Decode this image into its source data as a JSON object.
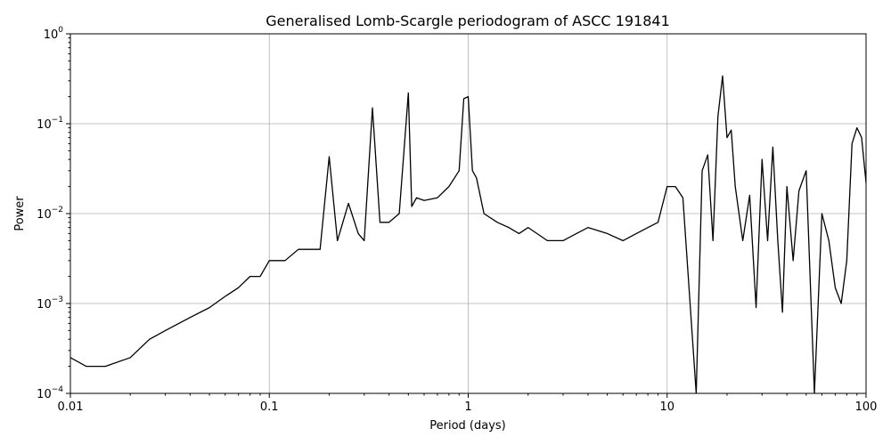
{
  "chart_data": {
    "type": "line",
    "title": "Generalised Lomb-Scargle periodogram of ASCC 191841",
    "xlabel": "Period (days)",
    "ylabel": "Power",
    "xscale": "log",
    "yscale": "log",
    "xlim": [
      0.01,
      100
    ],
    "ylim": [
      0.0001,
      1
    ],
    "grid": true,
    "line_color": "#000000",
    "x_ticks": [
      {
        "value": 0.01,
        "label": "0.01"
      },
      {
        "value": 0.1,
        "label": "0.1"
      },
      {
        "value": 1,
        "label": "1"
      },
      {
        "value": 10,
        "label": "10"
      },
      {
        "value": 100,
        "label": "100"
      }
    ],
    "y_ticks": [
      {
        "value": 0.0001,
        "base": "10",
        "exp": "−4"
      },
      {
        "value": 0.001,
        "base": "10",
        "exp": "−3"
      },
      {
        "value": 0.01,
        "base": "10",
        "exp": "−2"
      },
      {
        "value": 0.1,
        "base": "10",
        "exp": "−1"
      },
      {
        "value": 1,
        "base": "10",
        "exp": "0"
      }
    ],
    "series": [
      {
        "x": [
          0.01,
          0.012,
          0.015,
          0.02,
          0.025,
          0.03,
          0.04,
          0.05,
          0.06,
          0.07,
          0.08,
          0.09,
          0.1,
          0.12,
          0.14,
          0.16,
          0.18,
          0.2,
          0.22,
          0.25,
          0.28,
          0.3,
          0.33,
          0.36,
          0.4,
          0.45,
          0.5,
          0.52,
          0.55,
          0.6,
          0.7,
          0.8,
          0.9,
          0.95,
          1.0,
          1.05,
          1.1,
          1.2,
          1.4,
          1.6,
          1.8,
          2.0,
          2.5,
          3.0,
          3.5,
          4.0,
          5.0,
          6.0,
          7.0,
          8.0,
          9.0,
          10.0,
          11.0,
          12.0,
          14.0,
          15.0,
          16.0,
          17.0,
          18.0,
          19.0,
          20.0,
          21.0,
          22.0,
          24.0,
          26.0,
          28.0,
          30.0,
          32.0,
          34.0,
          36.0,
          38.0,
          40.0,
          43.0,
          46.0,
          50.0,
          55.0,
          60.0,
          65.0,
          70.0,
          75.0,
          80.0,
          85.0,
          90.0,
          95.0,
          100.0
        ],
        "y": [
          0.00025,
          0.0002,
          0.0002,
          0.00025,
          0.0004,
          0.0005,
          0.0007,
          0.0009,
          0.0012,
          0.0015,
          0.002,
          0.002,
          0.003,
          0.003,
          0.004,
          0.004,
          0.004,
          0.043,
          0.005,
          0.013,
          0.006,
          0.005,
          0.15,
          0.008,
          0.008,
          0.01,
          0.22,
          0.012,
          0.015,
          0.014,
          0.015,
          0.02,
          0.03,
          0.19,
          0.2,
          0.03,
          0.025,
          0.01,
          0.008,
          0.007,
          0.006,
          0.007,
          0.005,
          0.005,
          0.006,
          0.007,
          0.006,
          0.005,
          0.006,
          0.007,
          0.008,
          0.02,
          0.02,
          0.015,
          0.0001,
          0.03,
          0.045,
          0.005,
          0.12,
          0.34,
          0.07,
          0.085,
          0.02,
          0.005,
          0.016,
          0.0009,
          0.04,
          0.005,
          0.055,
          0.005,
          0.0008,
          0.02,
          0.003,
          0.018,
          0.03,
          0.0001,
          0.01,
          0.005,
          0.0015,
          0.001,
          0.003,
          0.06,
          0.09,
          0.07,
          0.022
        ]
      }
    ]
  }
}
